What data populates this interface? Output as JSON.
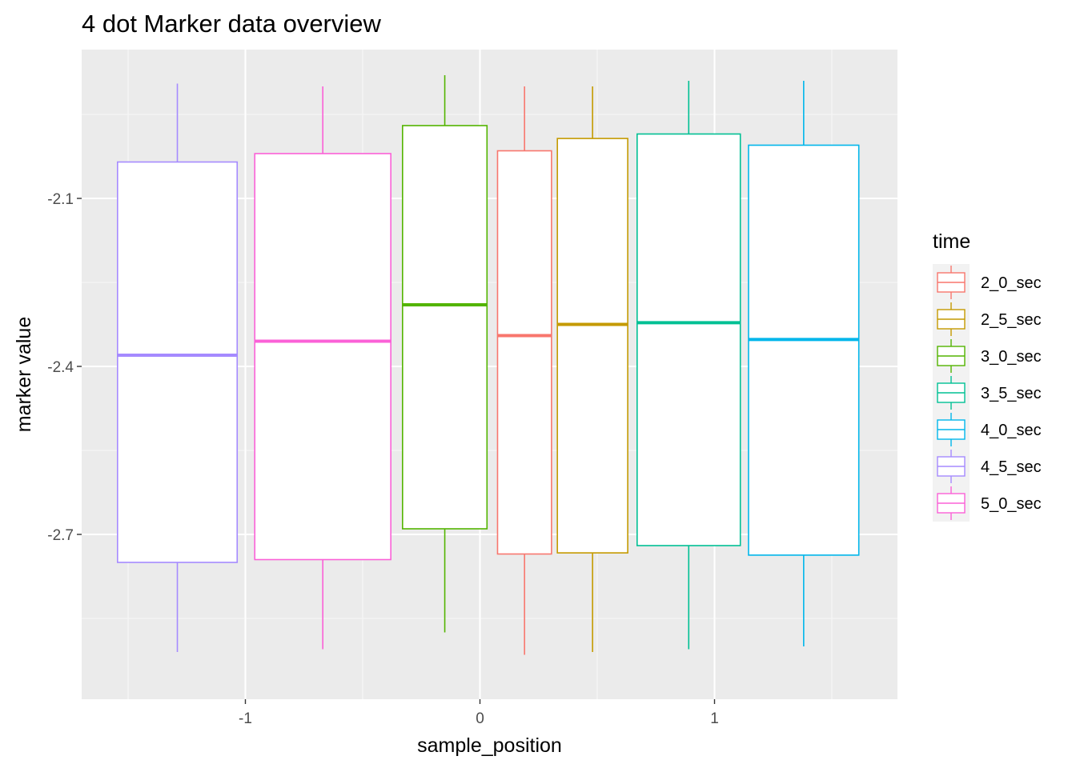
{
  "chart_data": {
    "type": "boxplot",
    "title": "4 dot Marker data overview",
    "xlabel": "sample_position",
    "ylabel": "marker value",
    "xlim": [
      -1.7,
      1.8
    ],
    "ylim": [
      -2.96,
      -1.89
    ],
    "x_ticks": [
      -1,
      0,
      1
    ],
    "x_tick_labels": [
      "-1",
      "0",
      "1"
    ],
    "y_ticks": [
      -2.1,
      -2.4,
      -2.7
    ],
    "y_tick_labels": [
      "-2.1",
      "-2.4",
      "-2.7"
    ],
    "grid": true,
    "legend": {
      "title": "time",
      "position": "right"
    },
    "series": [
      {
        "name": "4_5_sec",
        "color": "#C77CFF",
        "line_color": "#A58AFF",
        "x": -1.29,
        "width": 0.51,
        "min": -2.91,
        "q1": -2.75,
        "median": -2.38,
        "q3": -2.035,
        "max": -1.895
      },
      {
        "name": "5_0_sec",
        "color": "#FB61D7",
        "x": -0.67,
        "width": 0.58,
        "min": -2.905,
        "q1": -2.745,
        "median": -2.355,
        "q3": -2.02,
        "max": -1.9
      },
      {
        "name": "3_0_sec",
        "color": "#53B400",
        "x": -0.15,
        "width": 0.36,
        "min": -2.875,
        "q1": -2.69,
        "median": -2.29,
        "q3": -1.97,
        "max": -1.88
      },
      {
        "name": "2_0_sec",
        "color": "#F8766D",
        "x": 0.19,
        "width": 0.23,
        "min": -2.915,
        "q1": -2.735,
        "median": -2.345,
        "q3": -2.015,
        "max": -1.9
      },
      {
        "name": "2_5_sec",
        "color": "#C49A00",
        "x": 0.48,
        "width": 0.3,
        "min": -2.91,
        "q1": -2.733,
        "median": -2.325,
        "q3": -1.993,
        "max": -1.9
      },
      {
        "name": "3_5_sec",
        "color": "#00C094",
        "x": 0.89,
        "width": 0.44,
        "min": -2.905,
        "q1": -2.72,
        "median": -2.322,
        "q3": -1.985,
        "max": -1.89
      },
      {
        "name": "4_0_sec",
        "color": "#00B6EB",
        "x": 1.38,
        "width": 0.47,
        "min": -2.9,
        "q1": -2.737,
        "median": -2.352,
        "q3": -2.005,
        "max": -1.89
      }
    ],
    "legend_order": [
      "2_0_sec",
      "2_5_sec",
      "3_0_sec",
      "3_5_sec",
      "4_0_sec",
      "4_5_sec",
      "5_0_sec"
    ]
  }
}
